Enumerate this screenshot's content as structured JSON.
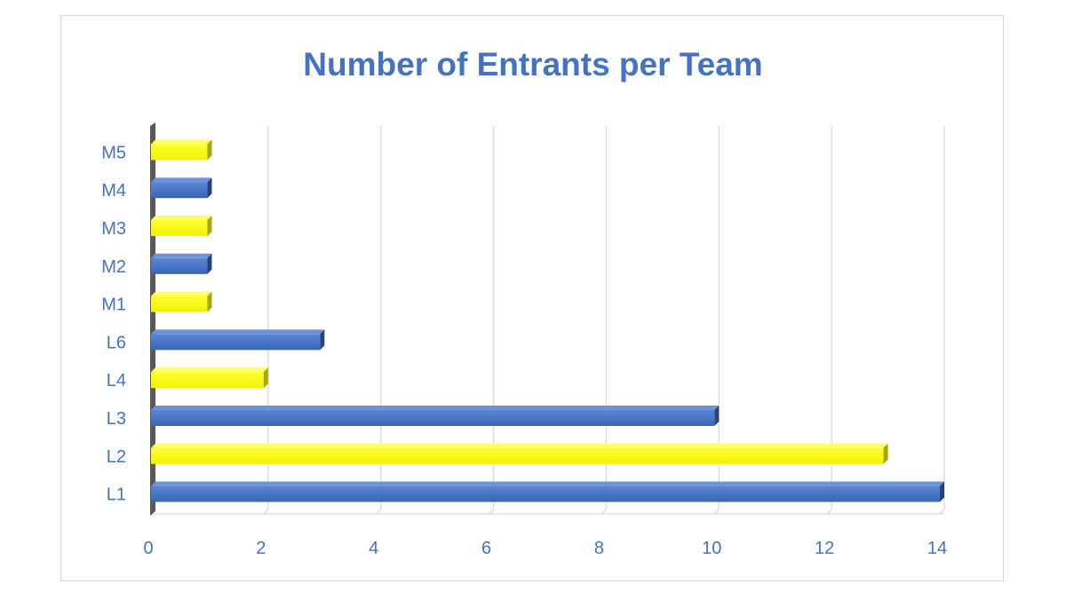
{
  "chart_data": {
    "type": "bar",
    "orientation": "horizontal",
    "title": "Number of Entrants per Team",
    "categories": [
      "L1",
      "L2",
      "L3",
      "L4",
      "L6",
      "M1",
      "M2",
      "M3",
      "M4",
      "M5"
    ],
    "values": [
      14,
      13,
      10,
      2,
      3,
      1,
      1,
      1,
      1,
      1
    ],
    "bar_colors": [
      "#4472c4",
      "#ffff00",
      "#4472c4",
      "#ffff00",
      "#4472c4",
      "#ffff00",
      "#4472c4",
      "#ffff00",
      "#4472c4",
      "#ffff00"
    ],
    "x_ticks": [
      "0",
      "2",
      "4",
      "6",
      "8",
      "10",
      "12",
      "14"
    ],
    "xlim": [
      0,
      14
    ],
    "grid": "vertical",
    "legend": "none",
    "xlabel": "",
    "ylabel": ""
  }
}
